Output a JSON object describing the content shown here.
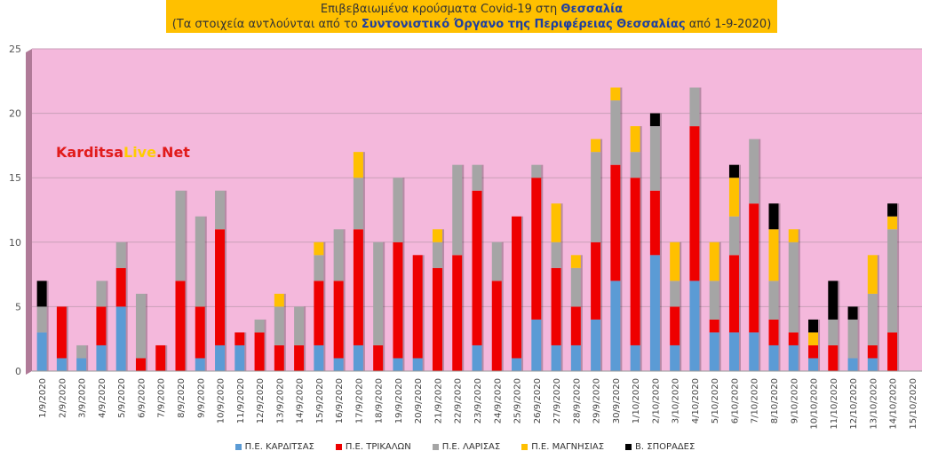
{
  "title": {
    "line1_prefix": "Επιβεβαιωμένα κρούσματα Covid-19 στη ",
    "line1_bold": "Θεσσαλία",
    "line2_prefix": "(Τα στοιχεία αντλούνται από το ",
    "line2_bold": "Συντονιστικό Όργανο της Περιφέρειας Θεσσαλίας",
    "line2_suffix": " από 1-9-2020)"
  },
  "watermark": {
    "part1": "Karditsa",
    "part2": "Live",
    "part3": ".Net"
  },
  "colors": {
    "plot_bg": "#f4b8dc",
    "wall": "#b07a98",
    "karditsa": "#5b9bd5",
    "trikala": "#ee0000",
    "larisa": "#a5a5a5",
    "magnisia": "#ffc000",
    "sporades": "#000000"
  },
  "chart_data": {
    "type": "bar",
    "stacked": true,
    "ylim": [
      0,
      25
    ],
    "yticks": [
      0,
      5,
      10,
      15,
      20,
      25
    ],
    "grid": true,
    "legend_position": "bottom",
    "categories": [
      "1/9/2020",
      "2/9/2020",
      "3/9/2020",
      "4/9/2020",
      "5/9/2020",
      "6/9/2020",
      "7/9/2020",
      "8/9/2020",
      "9/9/2020",
      "10/9/2020",
      "11/9/2020",
      "12/9/2020",
      "13/9/2020",
      "14/9/2020",
      "15/9/2020",
      "16/9/2020",
      "17/9/2020",
      "18/9/2020",
      "19/9/2020",
      "20/9/2020",
      "21/9/2020",
      "22/9/2020",
      "23/9/2020",
      "24/9/2020",
      "25/9/2020",
      "26/9/2020",
      "27/9/2020",
      "28/9/2020",
      "29/9/2020",
      "30/9/2020",
      "1/10/2020",
      "2/10/2020",
      "3/10/2020",
      "4/10/2020",
      "5/10/2020",
      "6/10/2020",
      "7/10/2020",
      "8/10/2020",
      "9/10/2020",
      "10/10/2020",
      "11/10/2020",
      "12/10/2020",
      "13/10/2020",
      "14/10/2020",
      "15/10/2020"
    ],
    "series": [
      {
        "name": "Π.Ε. ΚΑΡΔΙΤΣΑΣ",
        "color": "#5b9bd5",
        "values": [
          3,
          1,
          1,
          2,
          5,
          0,
          0,
          0,
          1,
          2,
          2,
          0,
          0,
          0,
          2,
          1,
          2,
          0,
          1,
          1,
          0,
          0,
          2,
          0,
          1,
          4,
          2,
          2,
          4,
          7,
          2,
          9,
          2,
          7,
          3,
          3,
          3,
          2,
          2,
          1,
          0,
          1,
          1,
          0,
          0
        ]
      },
      {
        "name": "Π.Ε. ΤΡΙΚΑΛΩΝ",
        "color": "#ee0000",
        "values": [
          0,
          4,
          0,
          3,
          3,
          1,
          2,
          7,
          4,
          9,
          1,
          3,
          2,
          2,
          5,
          6,
          9,
          2,
          9,
          8,
          8,
          9,
          12,
          7,
          11,
          11,
          6,
          3,
          6,
          9,
          13,
          5,
          3,
          12,
          1,
          6,
          10,
          2,
          1,
          1,
          2,
          0,
          1,
          3,
          0
        ]
      },
      {
        "name": "Π.Ε. ΛΑΡΙΣΑΣ",
        "color": "#a5a5a5",
        "values": [
          2,
          0,
          1,
          2,
          2,
          5,
          0,
          7,
          7,
          3,
          0,
          1,
          3,
          3,
          2,
          4,
          4,
          8,
          5,
          0,
          2,
          7,
          2,
          3,
          0,
          1,
          2,
          3,
          7,
          5,
          2,
          5,
          2,
          3,
          3,
          3,
          5,
          3,
          7,
          0,
          2,
          3,
          4,
          8,
          0
        ]
      },
      {
        "name": "Π.Ε. ΜΑΓΝΗΣΙΑΣ",
        "color": "#ffc000",
        "values": [
          0,
          0,
          0,
          0,
          0,
          0,
          0,
          0,
          0,
          0,
          0,
          0,
          1,
          0,
          1,
          0,
          2,
          0,
          0,
          0,
          1,
          0,
          0,
          0,
          0,
          0,
          3,
          1,
          1,
          1,
          2,
          0,
          3,
          0,
          3,
          3,
          0,
          4,
          1,
          1,
          0,
          0,
          3,
          1,
          0
        ]
      },
      {
        "name": "Β. ΣΠΟΡΑΔΕΣ",
        "color": "#000000",
        "values": [
          2,
          0,
          0,
          0,
          0,
          0,
          0,
          0,
          0,
          0,
          0,
          0,
          0,
          0,
          0,
          0,
          0,
          0,
          0,
          0,
          0,
          0,
          0,
          0,
          0,
          0,
          0,
          0,
          0,
          0,
          0,
          1,
          0,
          0,
          0,
          1,
          0,
          2,
          0,
          1,
          3,
          1,
          0,
          1,
          0
        ]
      }
    ]
  }
}
